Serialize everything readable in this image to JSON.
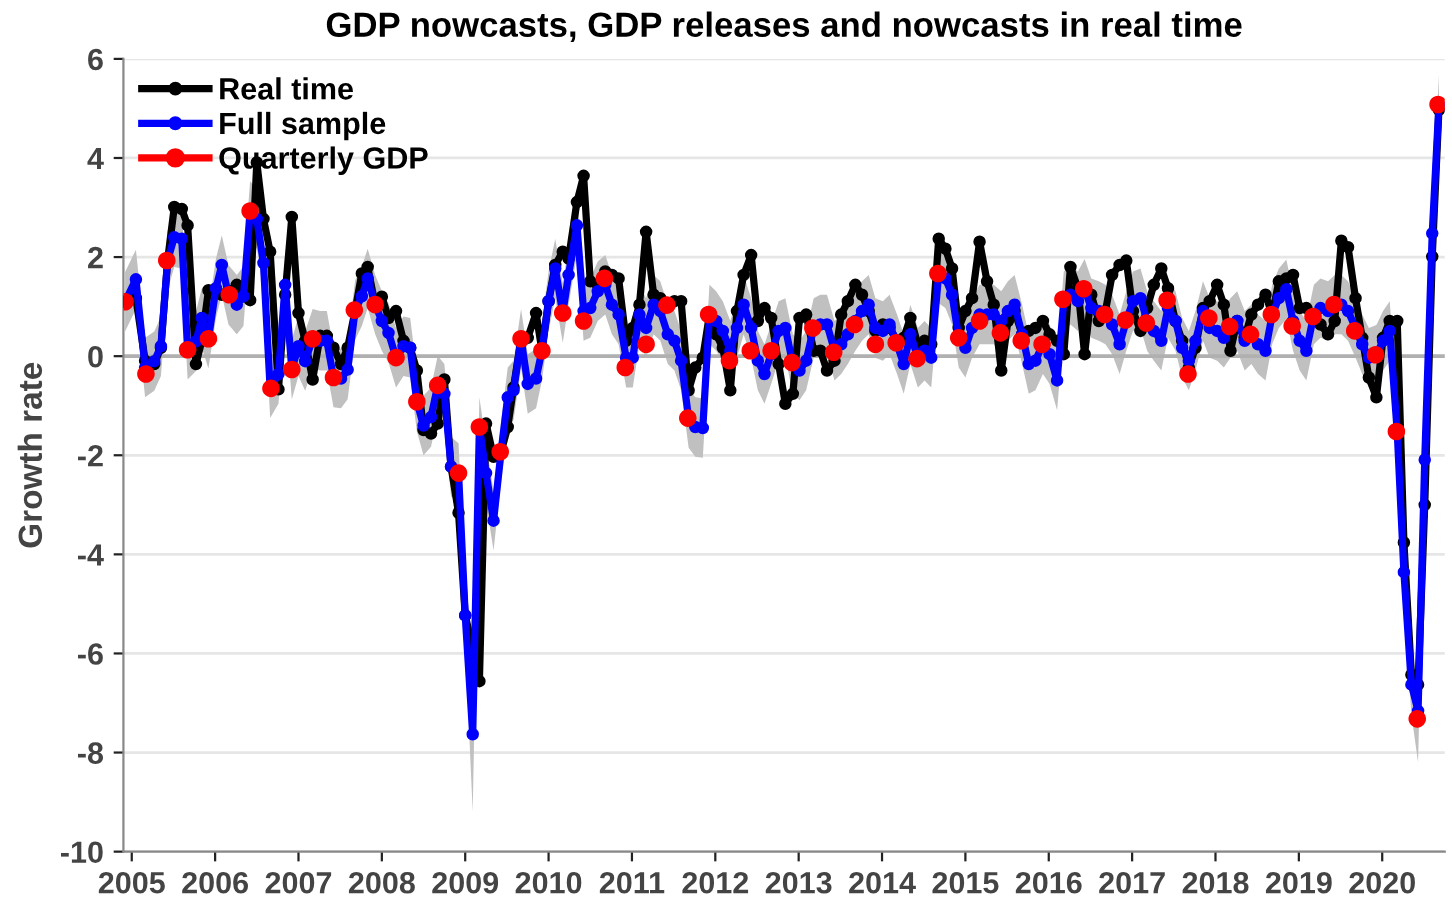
{
  "chart_data": {
    "type": "line",
    "title": "GDP nowcasts, GDP releases and nowcasts in real time",
    "ylabel": "Growth rate",
    "xlim": [
      2004.9,
      2020.75
    ],
    "xticks": [
      {
        "value": 2005,
        "label": "2005"
      },
      {
        "value": 2006,
        "label": "2006"
      },
      {
        "value": 2007,
        "label": "2007"
      },
      {
        "value": 2008,
        "label": "2008"
      },
      {
        "value": 2009,
        "label": "2009"
      },
      {
        "value": 2010,
        "label": "2010"
      },
      {
        "value": 2011,
        "label": "2011"
      },
      {
        "value": 2012,
        "label": "2012"
      },
      {
        "value": 2013,
        "label": "2013"
      },
      {
        "value": 2014,
        "label": "2014"
      },
      {
        "value": 2015,
        "label": "2015"
      },
      {
        "value": 2016,
        "label": "2016"
      },
      {
        "value": 2017,
        "label": "2017"
      },
      {
        "value": 2018,
        "label": "2018"
      },
      {
        "value": 2019,
        "label": "2019"
      },
      {
        "value": 2020,
        "label": "2020"
      }
    ],
    "ylim": [
      -10,
      6
    ],
    "yticks": [
      -10,
      -8,
      -6,
      -4,
      -2,
      0,
      2,
      4,
      6
    ],
    "grid": "y",
    "legend": "top left",
    "marker": "circle",
    "ref_lines": [
      {
        "axis": "y",
        "value": 0,
        "color": "#b0b0b0"
      }
    ],
    "series": [
      {
        "name": "Real time",
        "color": "#000000",
        "x": [
          2004.92,
          2005.05,
          2005.16,
          2005.27,
          2005.35,
          2005.43,
          2005.51,
          2005.6,
          2005.67,
          2005.77,
          2005.84,
          2005.92,
          2006.01,
          2006.08,
          2006.16,
          2006.26,
          2006.34,
          2006.42,
          2006.5,
          2006.58,
          2006.66,
          2006.76,
          2006.84,
          2006.92,
          2007.0,
          2007.08,
          2007.17,
          2007.26,
          2007.34,
          2007.42,
          2007.51,
          2007.59,
          2007.68,
          2007.76,
          2007.83,
          2007.92,
          2008.0,
          2008.08,
          2008.17,
          2008.26,
          2008.34,
          2008.42,
          2008.5,
          2008.59,
          2008.67,
          2008.75,
          2008.83,
          2008.92,
          2009.0,
          2009.09,
          2009.17,
          2009.25,
          2009.34,
          2009.43,
          2009.51,
          2009.58,
          2009.67,
          2009.75,
          2009.85,
          2009.92,
          2010.0,
          2010.08,
          2010.17,
          2010.24,
          2010.34,
          2010.42,
          2010.5,
          2010.59,
          2010.68,
          2010.76,
          2010.84,
          2010.93,
          2011.01,
          2011.09,
          2011.17,
          2011.26,
          2011.34,
          2011.43,
          2011.51,
          2011.59,
          2011.68,
          2011.76,
          2011.85,
          2011.93,
          2012.01,
          2012.09,
          2012.18,
          2012.26,
          2012.34,
          2012.43,
          2012.51,
          2012.59,
          2012.67,
          2012.76,
          2012.84,
          2012.93,
          2013.01,
          2013.09,
          2013.18,
          2013.26,
          2013.34,
          2013.43,
          2013.51,
          2013.59,
          2013.68,
          2013.76,
          2013.84,
          2013.92,
          2014.01,
          2014.09,
          2014.18,
          2014.26,
          2014.34,
          2014.43,
          2014.51,
          2014.59,
          2014.68,
          2014.76,
          2014.84,
          2014.92,
          2015.0,
          2015.08,
          2015.17,
          2015.26,
          2015.34,
          2015.43,
          2015.51,
          2015.59,
          2015.68,
          2015.76,
          2015.84,
          2015.93,
          2016.01,
          2016.1,
          2016.18,
          2016.26,
          2016.35,
          2016.43,
          2016.51,
          2016.6,
          2016.68,
          2016.76,
          2016.85,
          2016.93,
          2017.01,
          2017.1,
          2017.18,
          2017.26,
          2017.35,
          2017.43,
          2017.52,
          2017.6,
          2017.68,
          2017.76,
          2017.85,
          2017.93,
          2018.02,
          2018.1,
          2018.18,
          2018.26,
          2018.35,
          2018.43,
          2018.51,
          2018.6,
          2018.68,
          2018.76,
          2018.85,
          2018.93,
          2019.01,
          2019.09,
          2019.18,
          2019.26,
          2019.35,
          2019.43,
          2019.51,
          2019.59,
          2019.68,
          2019.76,
          2019.84,
          2019.93,
          2020.01,
          2020.09,
          2020.18,
          2020.26,
          2020.35,
          2020.43,
          2020.51,
          2020.6,
          2020.68
        ],
        "values": [
          1.1,
          1.17,
          -0.09,
          -0.16,
          0.17,
          1.93,
          3.01,
          2.97,
          2.64,
          -0.16,
          0.31,
          1.33,
          1.31,
          1.24,
          1.31,
          1.44,
          1.21,
          1.13,
          3.91,
          2.77,
          2.11,
          -0.67,
          1.24,
          2.81,
          0.87,
          0.31,
          -0.47,
          0.41,
          0.41,
          0.17,
          -0.16,
          0.17,
          0.93,
          1.67,
          1.8,
          1.04,
          1.2,
          0.77,
          0.91,
          0.31,
          0.17,
          -0.29,
          -1.49,
          -1.56,
          -1.36,
          -0.47,
          -2.23,
          -3.16,
          -5.23,
          -5.9,
          -6.56,
          -1.36,
          -2.03,
          -1.93,
          -1.43,
          -0.63,
          0.35,
          0.37,
          0.87,
          0.11,
          1.11,
          1.84,
          2.11,
          1.97,
          3.11,
          3.64,
          1.51,
          1.44,
          1.71,
          1.64,
          1.57,
          0.31,
          0.57,
          1.04,
          2.51,
          1.24,
          1.17,
          1.04,
          1.11,
          1.11,
          -0.69,
          -0.23,
          -0.03,
          0.84,
          0.44,
          0.17,
          -0.69,
          0.91,
          1.64,
          2.04,
          0.71,
          0.97,
          0.77,
          -0.16,
          -0.96,
          -0.76,
          0.77,
          0.84,
          0.11,
          0.11,
          -0.29,
          -0.09,
          0.84,
          1.11,
          1.44,
          1.24,
          0.91,
          0.51,
          0.64,
          0.57,
          0.31,
          0.37,
          0.77,
          0.24,
          0.31,
          0.24,
          2.37,
          2.17,
          1.77,
          0.57,
          0.91,
          1.17,
          2.31,
          1.51,
          1.04,
          -0.29,
          0.71,
          0.91,
          0.44,
          0.51,
          0.57,
          0.71,
          0.44,
          0.31,
          0.04,
          1.8,
          1.37,
          0.04,
          1.24,
          0.71,
          0.91,
          1.64,
          1.84,
          1.93,
          0.91,
          0.51,
          0.97,
          1.44,
          1.77,
          1.37,
          0.71,
          0.31,
          -0.23,
          0.17,
          0.97,
          1.11,
          1.44,
          1.04,
          0.11,
          0.71,
          0.37,
          0.84,
          1.04,
          1.24,
          0.84,
          1.51,
          1.57,
          1.64,
          0.97,
          0.97,
          0.84,
          0.64,
          0.44,
          0.71,
          2.33,
          2.2,
          1.17,
          0.37,
          -0.43,
          -0.83,
          0.37,
          0.71,
          0.71,
          -3.76,
          -6.43,
          -6.63,
          -3.0,
          2.01,
          4.97
        ]
      },
      {
        "name": "Full sample",
        "color": "#0000ff",
        "x": [
          2004.92,
          2005.05,
          2005.16,
          2005.27,
          2005.35,
          2005.43,
          2005.51,
          2005.6,
          2005.67,
          2005.77,
          2005.84,
          2005.92,
          2006.01,
          2006.08,
          2006.16,
          2006.26,
          2006.34,
          2006.42,
          2006.5,
          2006.58,
          2006.66,
          2006.76,
          2006.84,
          2006.92,
          2007.0,
          2007.08,
          2007.17,
          2007.26,
          2007.34,
          2007.42,
          2007.51,
          2007.59,
          2007.68,
          2007.76,
          2007.83,
          2007.92,
          2008.0,
          2008.08,
          2008.17,
          2008.26,
          2008.34,
          2008.42,
          2008.5,
          2008.59,
          2008.67,
          2008.75,
          2008.83,
          2008.92,
          2009.0,
          2009.09,
          2009.17,
          2009.25,
          2009.34,
          2009.43,
          2009.51,
          2009.58,
          2009.67,
          2009.75,
          2009.85,
          2009.92,
          2010.0,
          2010.08,
          2010.17,
          2010.24,
          2010.34,
          2010.42,
          2010.5,
          2010.59,
          2010.68,
          2010.76,
          2010.84,
          2010.93,
          2011.01,
          2011.09,
          2011.17,
          2011.26,
          2011.34,
          2011.43,
          2011.51,
          2011.59,
          2011.68,
          2011.76,
          2011.85,
          2011.93,
          2012.01,
          2012.09,
          2012.18,
          2012.26,
          2012.34,
          2012.43,
          2012.51,
          2012.59,
          2012.67,
          2012.76,
          2012.84,
          2012.93,
          2013.01,
          2013.09,
          2013.18,
          2013.26,
          2013.34,
          2013.43,
          2013.51,
          2013.59,
          2013.68,
          2013.76,
          2013.84,
          2013.92,
          2014.01,
          2014.09,
          2014.18,
          2014.26,
          2014.34,
          2014.43,
          2014.51,
          2014.59,
          2014.68,
          2014.76,
          2014.84,
          2014.92,
          2015.0,
          2015.08,
          2015.17,
          2015.26,
          2015.34,
          2015.43,
          2015.51,
          2015.59,
          2015.68,
          2015.76,
          2015.84,
          2015.93,
          2016.01,
          2016.1,
          2016.18,
          2016.26,
          2016.35,
          2016.43,
          2016.51,
          2016.6,
          2016.68,
          2016.76,
          2016.85,
          2016.93,
          2017.01,
          2017.1,
          2017.18,
          2017.26,
          2017.35,
          2017.43,
          2017.52,
          2017.6,
          2017.68,
          2017.76,
          2017.85,
          2017.93,
          2018.02,
          2018.1,
          2018.18,
          2018.26,
          2018.35,
          2018.43,
          2018.51,
          2018.6,
          2018.68,
          2018.76,
          2018.85,
          2018.93,
          2019.01,
          2019.09,
          2019.18,
          2019.26,
          2019.35,
          2019.43,
          2019.51,
          2019.59,
          2019.68,
          2019.76,
          2019.84,
          2019.93,
          2020.01,
          2020.09,
          2020.18,
          2020.26,
          2020.35,
          2020.43,
          2020.51,
          2020.6,
          2020.68
        ],
        "values": [
          1.1,
          1.55,
          -0.23,
          -0.1,
          0.2,
          1.93,
          2.4,
          2.37,
          0.13,
          0.3,
          0.77,
          0.35,
          1.37,
          1.84,
          1.24,
          1.04,
          1.21,
          2.93,
          2.77,
          1.88,
          -0.65,
          -0.36,
          1.44,
          -0.27,
          0.2,
          -0.1,
          0.35,
          0.31,
          0.31,
          -0.43,
          -0.45,
          -0.27,
          0.93,
          1.21,
          1.57,
          1.04,
          0.71,
          0.47,
          -0.03,
          0.2,
          0.17,
          -0.92,
          -1.4,
          -1.23,
          -0.59,
          -0.76,
          -2.23,
          -2.36,
          -5.23,
          -7.63,
          -1.43,
          -2.36,
          -3.32,
          -1.93,
          -0.83,
          -0.69,
          0.35,
          -0.56,
          -0.45,
          0.11,
          1.11,
          1.77,
          0.87,
          1.64,
          2.64,
          0.91,
          0.97,
          1.31,
          1.44,
          1.04,
          0.84,
          -0.03,
          -0.03,
          0.84,
          0.57,
          1.04,
          0.91,
          0.44,
          0.31,
          -0.09,
          -1.25,
          -1.43,
          -1.45,
          0.84,
          0.71,
          0.51,
          0.11,
          0.57,
          1.04,
          0.57,
          -0.09,
          -0.36,
          0.04,
          0.51,
          0.57,
          -0.16,
          -0.29,
          -0.09,
          0.57,
          0.64,
          0.64,
          0.11,
          0.24,
          0.44,
          0.71,
          0.91,
          1.04,
          0.57,
          0.51,
          0.64,
          0.24,
          -0.16,
          0.44,
          -0.03,
          0.11,
          -0.03,
          1.67,
          1.57,
          1.24,
          0.37,
          0.17,
          0.57,
          0.84,
          0.84,
          0.84,
          0.71,
          0.91,
          1.04,
          0.44,
          -0.16,
          -0.09,
          0.24,
          0.04,
          -0.49,
          1.11,
          1.24,
          1.11,
          1.36,
          0.97,
          0.91,
          0.84,
          0.64,
          0.24,
          0.71,
          1.11,
          1.17,
          0.71,
          0.51,
          0.31,
          0.97,
          0.71,
          0.17,
          -0.09,
          0.31,
          0.91,
          0.57,
          0.51,
          0.37,
          0.57,
          0.71,
          0.31,
          0.44,
          0.24,
          0.11,
          0.84,
          1.17,
          1.35,
          0.71,
          0.31,
          0.11,
          0.84,
          0.97,
          0.91,
          1.04,
          1.04,
          0.91,
          0.57,
          0.24,
          -0.03,
          0.03,
          0.31,
          0.51,
          -1.52,
          -4.36,
          -6.63,
          -7.16,
          -2.09,
          2.48,
          5.08
        ],
        "lower": [
          0.5,
          0.95,
          -0.83,
          -0.7,
          -0.4,
          1.33,
          1.8,
          1.77,
          -0.47,
          -0.3,
          0.17,
          -0.25,
          0.77,
          1.24,
          0.64,
          0.44,
          0.61,
          2.33,
          2.17,
          1.28,
          -1.25,
          -0.96,
          0.84,
          -0.87,
          -0.4,
          -0.7,
          -0.25,
          -0.29,
          -0.29,
          -1.03,
          -1.05,
          -0.87,
          0.33,
          0.61,
          0.97,
          0.44,
          0.11,
          -0.13,
          -0.63,
          -0.4,
          -0.43,
          -1.52,
          -2.0,
          -1.83,
          -1.19,
          -1.36,
          -2.83,
          -2.96,
          -5.83,
          -9.2,
          -2.03,
          -2.96,
          -3.92,
          -2.53,
          -1.43,
          -1.29,
          -0.25,
          -1.16,
          -1.05,
          -0.49,
          0.51,
          1.17,
          0.27,
          1.04,
          2.04,
          0.31,
          0.37,
          0.71,
          0.84,
          0.44,
          0.24,
          -0.63,
          -0.63,
          0.24,
          -0.03,
          0.44,
          0.31,
          -0.16,
          -0.29,
          -0.69,
          -1.85,
          -2.03,
          -2.05,
          0.24,
          0.11,
          -0.09,
          -0.49,
          -0.03,
          0.44,
          -0.03,
          -0.69,
          -0.96,
          -0.56,
          -0.09,
          -0.03,
          -0.76,
          -0.89,
          -0.69,
          -0.03,
          0.04,
          0.04,
          -0.49,
          -0.36,
          -0.16,
          0.11,
          0.31,
          0.44,
          -0.03,
          -0.09,
          0.04,
          -0.36,
          -0.76,
          -0.16,
          -0.63,
          -0.49,
          -0.63,
          1.07,
          0.97,
          0.64,
          -0.23,
          -0.43,
          -0.03,
          0.24,
          0.24,
          0.24,
          0.11,
          0.31,
          0.44,
          -0.16,
          -0.76,
          -0.69,
          -0.36,
          -0.56,
          -1.09,
          0.51,
          0.64,
          0.51,
          0.76,
          0.37,
          0.31,
          0.24,
          0.04,
          -0.36,
          0.11,
          0.51,
          0.57,
          0.11,
          -0.09,
          -0.29,
          0.37,
          0.11,
          -0.43,
          -0.69,
          -0.29,
          0.31,
          -0.03,
          -0.09,
          -0.23,
          -0.03,
          0.11,
          -0.29,
          -0.16,
          -0.36,
          -0.49,
          0.24,
          0.57,
          0.75,
          0.11,
          -0.29,
          -0.49,
          0.24,
          0.37,
          0.31,
          0.44,
          0.44,
          0.31,
          -0.03,
          -0.36,
          -0.63,
          -0.57,
          -0.29,
          -0.09,
          -2.12,
          -4.96,
          -7.23,
          -8.2,
          -2.69,
          1.88,
          4.48
        ],
        "upper": [
          1.7,
          2.15,
          0.37,
          0.5,
          0.8,
          2.53,
          3.0,
          2.97,
          0.73,
          0.9,
          1.37,
          0.95,
          1.97,
          2.44,
          1.84,
          1.64,
          1.81,
          3.53,
          3.37,
          2.48,
          -0.05,
          0.24,
          2.04,
          0.33,
          0.8,
          0.5,
          0.95,
          0.91,
          0.91,
          0.17,
          0.15,
          0.33,
          1.53,
          1.81,
          2.17,
          1.64,
          1.31,
          1.07,
          0.57,
          0.8,
          0.77,
          -0.32,
          -0.8,
          -0.63,
          0.01,
          -0.16,
          -1.63,
          -1.76,
          -4.63,
          -7.03,
          -0.83,
          -1.76,
          -2.72,
          -1.33,
          -0.23,
          -0.09,
          0.95,
          0.04,
          0.15,
          0.71,
          1.71,
          2.37,
          1.47,
          2.24,
          3.24,
          1.51,
          1.57,
          1.91,
          2.04,
          1.64,
          1.44,
          0.57,
          0.57,
          1.44,
          1.17,
          1.64,
          1.51,
          1.04,
          0.91,
          0.51,
          -0.65,
          -0.83,
          -0.85,
          1.44,
          1.31,
          1.11,
          0.71,
          1.17,
          1.64,
          1.17,
          0.51,
          0.24,
          0.64,
          1.11,
          1.17,
          0.44,
          0.31,
          0.51,
          1.17,
          1.24,
          1.24,
          0.71,
          0.84,
          1.04,
          1.31,
          1.51,
          1.64,
          1.17,
          1.11,
          1.24,
          0.84,
          0.44,
          1.04,
          0.57,
          0.71,
          0.57,
          2.27,
          2.17,
          1.84,
          0.97,
          0.77,
          1.17,
          1.44,
          1.44,
          1.44,
          1.31,
          1.51,
          1.64,
          1.04,
          0.44,
          0.51,
          0.84,
          0.64,
          0.11,
          1.71,
          1.84,
          1.71,
          1.96,
          1.57,
          1.51,
          1.44,
          1.24,
          0.84,
          1.31,
          1.71,
          1.77,
          1.31,
          1.11,
          0.91,
          1.57,
          1.31,
          0.77,
          0.51,
          0.91,
          1.51,
          1.17,
          1.11,
          0.97,
          1.17,
          1.31,
          0.91,
          1.04,
          0.84,
          0.71,
          1.44,
          1.77,
          1.95,
          1.31,
          0.91,
          0.71,
          1.44,
          1.57,
          1.51,
          1.64,
          1.64,
          1.51,
          1.17,
          0.84,
          0.57,
          0.63,
          0.91,
          1.11,
          -0.92,
          -3.76,
          -6.03,
          -6.56,
          -1.49,
          3.08,
          5.68
        ]
      },
      {
        "name": "Quarterly GDP",
        "type": "scatter",
        "color": "#ff0000",
        "x": [
          2004.92,
          2005.17,
          2005.42,
          2005.67,
          2005.92,
          2006.17,
          2006.42,
          2006.67,
          2006.92,
          2007.17,
          2007.42,
          2007.67,
          2007.92,
          2008.17,
          2008.42,
          2008.67,
          2008.92,
          2009.17,
          2009.42,
          2009.67,
          2009.92,
          2010.17,
          2010.42,
          2010.67,
          2010.92,
          2011.17,
          2011.42,
          2011.67,
          2011.92,
          2012.17,
          2012.42,
          2012.67,
          2012.92,
          2013.17,
          2013.42,
          2013.67,
          2013.92,
          2014.17,
          2014.42,
          2014.67,
          2014.92,
          2015.17,
          2015.42,
          2015.67,
          2015.92,
          2016.17,
          2016.42,
          2016.67,
          2016.92,
          2017.17,
          2017.42,
          2017.67,
          2017.92,
          2018.17,
          2018.42,
          2018.67,
          2018.92,
          2019.17,
          2019.42,
          2019.67,
          2019.92,
          2020.17,
          2020.42,
          2020.67
        ],
        "values": [
          1.1,
          -0.36,
          1.93,
          0.13,
          0.35,
          1.24,
          2.93,
          -0.65,
          -0.27,
          0.35,
          -0.43,
          0.93,
          1.04,
          -0.03,
          -0.92,
          -0.59,
          -2.36,
          -1.43,
          -1.93,
          0.35,
          0.11,
          0.87,
          0.71,
          1.57,
          -0.23,
          0.24,
          1.03,
          -1.25,
          0.84,
          -0.09,
          0.11,
          0.11,
          -0.13,
          0.57,
          0.08,
          0.64,
          0.24,
          0.27,
          -0.05,
          1.67,
          0.37,
          0.71,
          0.47,
          0.31,
          0.24,
          1.15,
          1.36,
          0.84,
          0.73,
          0.67,
          1.13,
          -0.36,
          0.77,
          0.6,
          0.44,
          0.84,
          0.61,
          0.8,
          1.04,
          0.51,
          0.03,
          -1.52,
          -7.32,
          5.08
        ]
      }
    ]
  }
}
